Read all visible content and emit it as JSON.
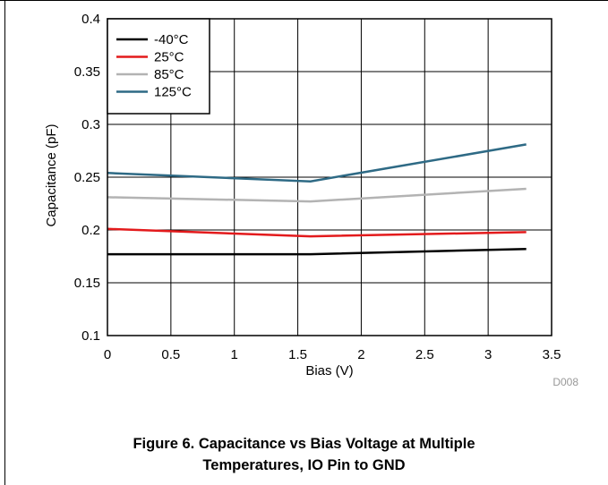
{
  "chart_data": {
    "type": "line",
    "xlabel": "Bias (V)",
    "ylabel": "Capacitance (pF)",
    "xlim": [
      0,
      3.5
    ],
    "ylim": [
      0.1,
      0.4
    ],
    "x_ticks": [
      "0",
      "0.5",
      "1",
      "1.5",
      "2",
      "2.5",
      "3",
      "3.5"
    ],
    "y_ticks": [
      "0.1",
      "0.15",
      "0.2",
      "0.25",
      "0.3",
      "0.35",
      "0.4"
    ],
    "grid": true,
    "legend_position": "top-left",
    "series": [
      {
        "name": "-40°C",
        "color": "#000000",
        "x": [
          0,
          1.6,
          3.3
        ],
        "y": [
          0.177,
          0.177,
          0.182
        ]
      },
      {
        "name": "25°C",
        "color": "#e31a1c",
        "x": [
          0,
          1.6,
          3.3
        ],
        "y": [
          0.201,
          0.194,
          0.198
        ]
      },
      {
        "name": "85°C",
        "color": "#b3b3b3",
        "x": [
          0,
          1.6,
          3.3
        ],
        "y": [
          0.231,
          0.227,
          0.239
        ]
      },
      {
        "name": "125°C",
        "color": "#2e6a85",
        "x": [
          0,
          1.6,
          3.3
        ],
        "y": [
          0.254,
          0.246,
          0.281
        ]
      }
    ],
    "code_label": "D008"
  },
  "caption": {
    "line1": "Figure 6. Capacitance vs Bias Voltage at Multiple",
    "line2": "Temperatures, IO Pin to GND"
  }
}
